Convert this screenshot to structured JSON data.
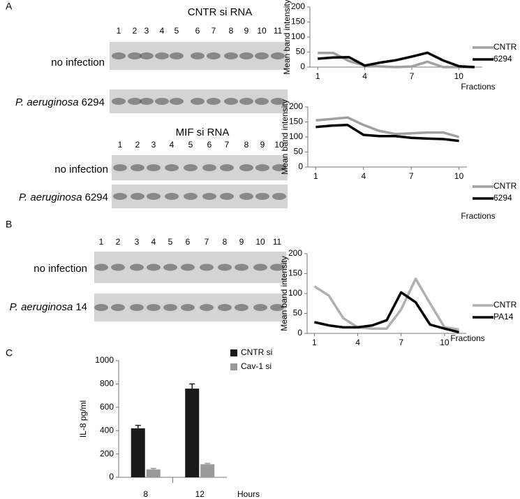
{
  "blots": {
    "panel_a": "A",
    "panel_b": "B",
    "panel_c": "C",
    "cntr_title": "CNTR si RNA",
    "cntr_lanes": [
      "1",
      "2",
      "3",
      "4",
      "5",
      "6",
      "7",
      "8",
      "9",
      "10",
      "11"
    ],
    "cntr_rows": [
      {
        "label": "no infection"
      },
      {
        "organism": "P. aeruginosa",
        "strain": "6294"
      }
    ],
    "mif_title": "MIF si RNA",
    "mif_lanes": [
      "1",
      "2",
      "3",
      "4",
      "5",
      "6",
      "7",
      "8",
      "9",
      "10"
    ],
    "mif_rows": [
      {
        "label": "no infection"
      },
      {
        "organism": "P. aeruginosa",
        "strain": "6294"
      }
    ],
    "b_lanes": [
      "1",
      "2",
      "3",
      "4",
      "5",
      "6",
      "7",
      "8",
      "9",
      "10",
      "11"
    ],
    "b_rows": [
      {
        "label": "no infection"
      },
      {
        "organism": "P. aeruginosa",
        "strain": "14"
      }
    ]
  },
  "chart_data": [
    {
      "type": "line",
      "ylabel": "Mean band intensity",
      "xlabel": "Fractions",
      "x": [
        1,
        2,
        3,
        4,
        5,
        6,
        7,
        8,
        9,
        10,
        11
      ],
      "xlim": [
        0.5,
        11.5
      ],
      "xticks": [
        1,
        4,
        7,
        10
      ],
      "ylim": [
        0,
        200
      ],
      "yticks": [
        0,
        50,
        100,
        150,
        200
      ],
      "series": [
        {
          "name": "CNTR",
          "color": "#a0a0a0",
          "values": [
            47,
            47,
            20,
            5,
            2,
            0,
            2,
            18,
            0,
            0,
            0
          ]
        },
        {
          "name": "6294",
          "color": "#000000",
          "values": [
            28,
            32,
            33,
            5,
            15,
            23,
            35,
            48,
            22,
            3,
            0
          ]
        }
      ]
    },
    {
      "type": "line",
      "ylabel": "Mean band intensity",
      "xlabel": "Fractions",
      "x": [
        1,
        2,
        3,
        4,
        5,
        6,
        7,
        8,
        9,
        10
      ],
      "xlim": [
        0.5,
        10.5
      ],
      "xticks": [
        1,
        4,
        7,
        10
      ],
      "ylim": [
        0,
        200
      ],
      "yticks": [
        0,
        50,
        100,
        150,
        200
      ],
      "series": [
        {
          "name": "CNTR",
          "color": "#a0a0a0",
          "values": [
            155,
            160,
            165,
            140,
            120,
            110,
            112,
            115,
            115,
            100
          ]
        },
        {
          "name": "6294",
          "color": "#000000",
          "values": [
            133,
            138,
            140,
            107,
            103,
            103,
            97,
            95,
            93,
            87
          ]
        }
      ]
    },
    {
      "type": "line",
      "ylabel": "Mean band intensity",
      "xlabel": "Fractions",
      "x": [
        1,
        2,
        3,
        4,
        5,
        6,
        7,
        8,
        9,
        10,
        11
      ],
      "xlim": [
        0.5,
        11.5
      ],
      "xticks": [
        1,
        4,
        7,
        10
      ],
      "ylim": [
        0,
        200
      ],
      "yticks": [
        0,
        50,
        100,
        150,
        200
      ],
      "series": [
        {
          "name": "CNTR",
          "color": "#b0b0b0",
          "values": [
            118,
            95,
            38,
            15,
            12,
            12,
            60,
            137,
            75,
            15,
            10
          ]
        },
        {
          "name": "PA14",
          "color": "#000000",
          "values": [
            28,
            20,
            15,
            15,
            20,
            33,
            103,
            78,
            22,
            12,
            3
          ]
        }
      ]
    },
    {
      "type": "bar",
      "ylabel": "IL-8 pg/ml",
      "xlabel": "Hours",
      "categories": [
        "8",
        "12"
      ],
      "ylim": [
        0,
        1000
      ],
      "yticks": [
        0,
        200,
        400,
        600,
        800,
        1000
      ],
      "series": [
        {
          "name": "CNTR si",
          "color": "#1a1a1a",
          "values": [
            420,
            760
          ],
          "errors": [
            25,
            40
          ]
        },
        {
          "name": "Cav-1 si",
          "color": "#999999",
          "values": [
            68,
            112
          ],
          "errors": [
            8,
            8
          ]
        }
      ]
    }
  ]
}
